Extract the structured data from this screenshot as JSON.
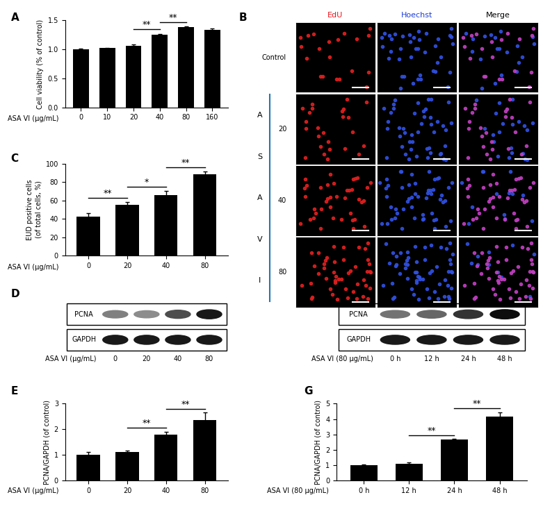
{
  "chart_data": [
    {
      "type": "bar",
      "panel": "A",
      "categories": [
        "0",
        "10",
        "20",
        "40",
        "80",
        "160"
      ],
      "values": [
        1.0,
        1.02,
        1.06,
        1.25,
        1.38,
        1.34
      ],
      "errors": [
        0.01,
        0.01,
        0.02,
        0.02,
        0.02,
        0.02
      ],
      "color": "#000000",
      "ylabel": "Cell viability (% of control)",
      "xlabel": "ASA VI (μg/mL)",
      "ylim": [
        0,
        1.5
      ],
      "yticks": [
        {
          "value": 0,
          "label": "0.0"
        },
        {
          "value": 0.5,
          "label": "0.5"
        },
        {
          "value": 1.0,
          "label": "1.0"
        },
        {
          "value": 1.5,
          "label": "1.5"
        }
      ],
      "significance": [
        {
          "from": 2,
          "to": 3,
          "label": "**"
        },
        {
          "from": 3,
          "to": 4,
          "label": "**"
        }
      ]
    },
    {
      "type": "micrograph",
      "panel": "B",
      "columns": [
        {
          "name": "EdU",
          "color": "#e8141c"
        },
        {
          "name": "Hoechst",
          "color": "#1f3fd6"
        },
        {
          "name": "Merge",
          "color": "#000000"
        }
      ],
      "rows": [
        "Control",
        "20",
        "40",
        "80"
      ],
      "row_group_label": "ASA VI"
    },
    {
      "type": "bar",
      "panel": "C",
      "categories": [
        "0",
        "20",
        "40",
        "80"
      ],
      "values": [
        42,
        55,
        66,
        88
      ],
      "errors": [
        4,
        3,
        4,
        3
      ],
      "color": "#000000",
      "ylabel": "EUD positive cells\n(of total cells, %)",
      "xlabel": "ASA VI (μg/mL)",
      "ylim": [
        0,
        100
      ],
      "yticks": [
        0,
        20,
        40,
        60,
        80,
        100
      ],
      "significance": [
        {
          "from": 0,
          "to": 1,
          "label": "**"
        },
        {
          "from": 1,
          "to": 2,
          "label": "*"
        },
        {
          "from": 2,
          "to": 3,
          "label": "**"
        }
      ]
    },
    {
      "type": "blot",
      "panel": "D",
      "categories": [
        "0",
        "20",
        "40",
        "80"
      ],
      "xlabel": "ASA VI (μg/mL)",
      "rows": [
        {
          "name": "PCNA",
          "band_intensity": [
            0.5,
            0.45,
            0.7,
            0.9
          ]
        },
        {
          "name": "GAPDH",
          "band_intensity": [
            0.9,
            0.9,
            0.9,
            0.9
          ]
        }
      ]
    },
    {
      "type": "bar",
      "panel": "E",
      "categories": [
        "0",
        "20",
        "40",
        "80"
      ],
      "values": [
        1.0,
        1.12,
        1.8,
        2.35
      ],
      "errors": [
        0.1,
        0.05,
        0.1,
        0.3
      ],
      "color": "#000000",
      "ylabel": "PCNA/GAPDH (of control)",
      "xlabel": "ASA VI (μg/mL)",
      "ylim": [
        0,
        3
      ],
      "yticks": [
        0,
        1,
        2,
        3
      ],
      "significance": [
        {
          "from": 1,
          "to": 2,
          "label": "**"
        },
        {
          "from": 2,
          "to": 3,
          "label": "**"
        }
      ]
    },
    {
      "type": "blot",
      "panel": "F",
      "categories": [
        "0 h",
        "12 h",
        "24 h",
        "48 h"
      ],
      "xlabel": "ASA VI (80 μg/mL)",
      "rows": [
        {
          "name": "PCNA",
          "band_intensity": [
            0.55,
            0.6,
            0.8,
            0.95
          ]
        },
        {
          "name": "GAPDH",
          "band_intensity": [
            0.9,
            0.9,
            0.9,
            0.9
          ]
        }
      ]
    },
    {
      "type": "bar",
      "panel": "G",
      "categories": [
        "0 h",
        "12 h",
        "24 h",
        "48 h"
      ],
      "values": [
        1.0,
        1.1,
        2.65,
        4.15
      ],
      "errors": [
        0.05,
        0.08,
        0.05,
        0.3
      ],
      "color": "#000000",
      "ylabel": "PCNA/GAPDH (of control)",
      "xlabel": "ASA VI (80 μg/mL)",
      "ylim": [
        0,
        5
      ],
      "yticks": [
        0,
        1,
        2,
        3,
        4,
        5
      ],
      "significance": [
        {
          "from": 1,
          "to": 2,
          "label": "**"
        },
        {
          "from": 2,
          "to": 3,
          "label": "**"
        }
      ]
    }
  ]
}
